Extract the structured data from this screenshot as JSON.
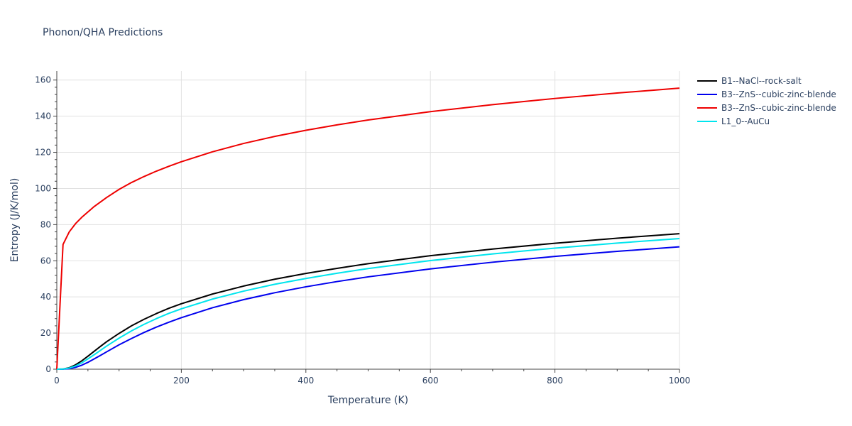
{
  "chart_data": {
    "type": "line",
    "title": "Phonon/QHA Predictions",
    "xlabel": "Temperature (K)",
    "ylabel": "Entropy (J/K/mol)",
    "xlim": [
      0,
      1000
    ],
    "ylim": [
      0,
      165
    ],
    "x_ticks": [
      0,
      200,
      400,
      600,
      800,
      1000
    ],
    "y_ticks": [
      0,
      20,
      40,
      60,
      80,
      100,
      120,
      140,
      160
    ],
    "grid": true,
    "legend_position": "right",
    "series": [
      {
        "name": "B1--NaCl--rock-salt",
        "color": "#000000",
        "x": [
          0,
          10,
          20,
          30,
          40,
          50,
          60,
          70,
          80,
          100,
          120,
          140,
          160,
          180,
          200,
          250,
          300,
          350,
          400,
          450,
          500,
          600,
          700,
          800,
          900,
          1000
        ],
        "y": [
          0,
          0.1,
          0.8,
          2.4,
          4.6,
          7.2,
          9.9,
          12.6,
          15.2,
          19.8,
          24.0,
          27.6,
          30.8,
          33.7,
          36.2,
          41.6,
          46.0,
          49.8,
          53.0,
          55.8,
          58.4,
          62.8,
          66.5,
          69.7,
          72.5,
          75.0
        ]
      },
      {
        "name": "B3--ZnS--cubic-zinc-blende",
        "color": "#0000ee",
        "x": [
          0,
          10,
          20,
          30,
          40,
          50,
          60,
          70,
          80,
          100,
          120,
          140,
          160,
          180,
          200,
          250,
          300,
          350,
          400,
          450,
          500,
          600,
          700,
          800,
          900,
          1000
        ],
        "y": [
          0,
          0.05,
          0.3,
          1.0,
          2.2,
          3.8,
          5.7,
          7.6,
          9.6,
          13.5,
          17.0,
          20.3,
          23.3,
          26.0,
          28.5,
          34.0,
          38.5,
          42.3,
          45.6,
          48.5,
          51.1,
          55.5,
          59.2,
          62.4,
          65.2,
          67.7
        ]
      },
      {
        "name": "B3--ZnS--cubic-zinc-blende",
        "color": "#ee0000",
        "x": [
          0,
          10,
          20,
          30,
          40,
          50,
          60,
          70,
          80,
          100,
          120,
          140,
          160,
          180,
          200,
          250,
          300,
          350,
          400,
          450,
          500,
          600,
          700,
          800,
          900,
          1000
        ],
        "y": [
          0,
          69,
          76,
          80.5,
          84,
          87,
          90,
          92.5,
          95,
          99.5,
          103.3,
          106.6,
          109.6,
          112.3,
          114.8,
          120.3,
          124.9,
          128.8,
          132.2,
          135.2,
          137.9,
          142.5,
          146.4,
          149.8,
          152.8,
          155.5
        ]
      },
      {
        "name": "L1_0--AuCu",
        "color": "#00e5ee",
        "x": [
          0,
          10,
          20,
          30,
          40,
          50,
          60,
          70,
          80,
          100,
          120,
          140,
          160,
          180,
          200,
          250,
          300,
          350,
          400,
          450,
          500,
          600,
          700,
          800,
          900,
          1000
        ],
        "y": [
          0,
          0.08,
          0.6,
          1.8,
          3.5,
          5.7,
          8.0,
          10.4,
          12.8,
          17.2,
          21.2,
          24.8,
          28.0,
          30.9,
          33.4,
          38.8,
          43.2,
          47.0,
          50.2,
          53.1,
          55.7,
          60.1,
          63.8,
          67.0,
          69.8,
          72.3
        ]
      }
    ]
  }
}
